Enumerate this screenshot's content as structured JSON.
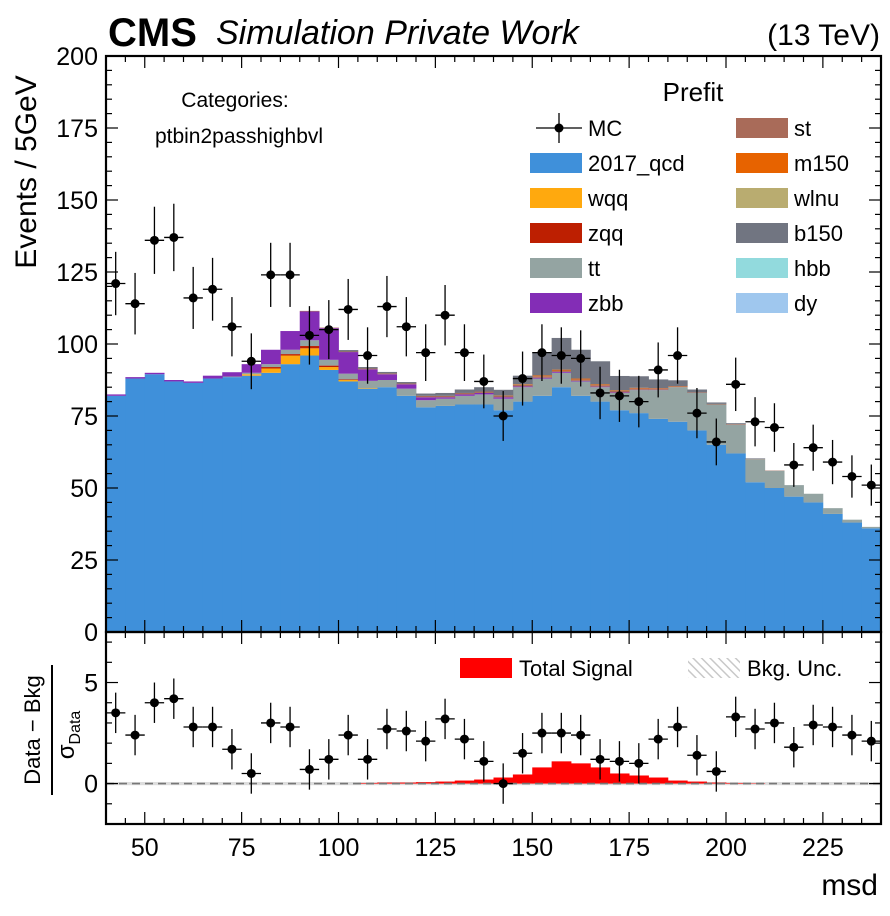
{
  "header": {
    "experiment": "CMS",
    "status": "Simulation Private Work",
    "energy": "(13 TeV)"
  },
  "chart_data": [
    {
      "panel": "main",
      "type": "bar",
      "stacked": true,
      "ylabel": "Events / 5GeV",
      "xlim": [
        40,
        240
      ],
      "ylim": [
        0,
        200
      ],
      "yticks": [
        0,
        25,
        50,
        75,
        100,
        125,
        150,
        175,
        200
      ],
      "annotation": [
        "Categories:",
        "ptbin2passhighbvl"
      ],
      "legend_title": "Prefit",
      "legend_position": "top-right",
      "bin_edges": [
        40,
        45,
        50,
        55,
        60,
        65,
        70,
        75,
        80,
        85,
        90,
        95,
        100,
        105,
        110,
        115,
        120,
        125,
        130,
        135,
        140,
        145,
        150,
        155,
        160,
        165,
        170,
        175,
        180,
        185,
        190,
        195,
        200,
        205,
        210,
        215,
        220,
        225,
        230,
        235,
        240
      ],
      "series": [
        {
          "name": "2017_qcd",
          "color": "#3f90da",
          "values": [
            82,
            88,
            89.5,
            87,
            86.5,
            88,
            88.5,
            89,
            90,
            93,
            96,
            91,
            87,
            84.5,
            85,
            82,
            78,
            78.5,
            79,
            79,
            77,
            80,
            82,
            85,
            82,
            80,
            77,
            76,
            74,
            73,
            70,
            65,
            62,
            52,
            50,
            47,
            45,
            41,
            38,
            36
          ]
        },
        {
          "name": "wqq",
          "color": "#ffa90e",
          "values": [
            0,
            0,
            0,
            0,
            0,
            0,
            0,
            0.5,
            1.5,
            3,
            2.5,
            1,
            0.5,
            0.2,
            0,
            0,
            0,
            0,
            0,
            0,
            0,
            0,
            0,
            0,
            0,
            0,
            0,
            0,
            0,
            0,
            0,
            0,
            0,
            0,
            0,
            0,
            0,
            0,
            0,
            0
          ]
        },
        {
          "name": "zqq",
          "color": "#bd1f01",
          "values": [
            0,
            0,
            0,
            0,
            0,
            0,
            0,
            0,
            0.5,
            0.5,
            0.8,
            0.5,
            0.2,
            0,
            0,
            0,
            0,
            0,
            0,
            0,
            0,
            0,
            0,
            0,
            0,
            0,
            0,
            0,
            0,
            0,
            0,
            0,
            0,
            0,
            0,
            0,
            0,
            0,
            0,
            0
          ]
        },
        {
          "name": "tt",
          "color": "#94a4a2",
          "values": [
            0,
            0,
            0,
            0,
            0,
            0,
            0.2,
            0.5,
            1,
            1.5,
            2,
            2,
            2,
            2.5,
            2.5,
            2.5,
            2.5,
            2.5,
            3,
            3.5,
            4,
            5,
            6,
            5,
            5,
            5,
            6,
            8,
            10,
            12,
            13,
            14,
            10,
            8,
            6,
            4,
            3,
            2,
            1,
            0.5
          ]
        },
        {
          "name": "zbb",
          "color": "#832db6",
          "values": [
            0.5,
            0.5,
            0.5,
            0.5,
            0.5,
            1,
            1.5,
            3,
            5,
            6.5,
            10,
            11,
            7.5,
            4,
            2,
            1.5,
            1,
            0.5,
            0.5,
            0.5,
            0.5,
            0.3,
            0.3,
            0.3,
            0.2,
            0.2,
            0.2,
            0.1,
            0.1,
            0,
            0,
            0,
            0,
            0,
            0,
            0,
            0,
            0,
            0,
            0
          ]
        },
        {
          "name": "st",
          "color": "#a96b59",
          "values": [
            0,
            0,
            0,
            0,
            0,
            0,
            0,
            0,
            0,
            0,
            0.2,
            0.2,
            0.2,
            0.3,
            0.3,
            0.3,
            0.5,
            0.5,
            0.5,
            0.5,
            0.5,
            0.5,
            0.5,
            0.5,
            0.5,
            0.5,
            0.5,
            0.5,
            0.5,
            0.3,
            0.2,
            0.2,
            0.2,
            0.1,
            0.1,
            0,
            0,
            0,
            0,
            0
          ]
        },
        {
          "name": "m150",
          "color": "#e76300",
          "values": [
            0,
            0,
            0,
            0,
            0,
            0,
            0,
            0,
            0,
            0,
            0,
            0,
            0,
            0,
            0,
            0,
            0,
            0,
            0,
            0,
            0.1,
            0.2,
            0.3,
            0.3,
            0.3,
            0.3,
            0.2,
            0.2,
            0.1,
            0.1,
            0,
            0,
            0,
            0,
            0,
            0,
            0,
            0,
            0,
            0
          ]
        },
        {
          "name": "wlnu",
          "color": "#b9ac70",
          "values": [
            0,
            0,
            0,
            0,
            0,
            0,
            0,
            0,
            0,
            0,
            0,
            0,
            0,
            0,
            0,
            0,
            0,
            0,
            0,
            0,
            0,
            0,
            0,
            0,
            0,
            0,
            0,
            0,
            0,
            0,
            0,
            0,
            0,
            0,
            0,
            0,
            0,
            0,
            0,
            0
          ]
        },
        {
          "name": "b150",
          "color": "#717581",
          "values": [
            0,
            0,
            0,
            0,
            0,
            0,
            0,
            0,
            0,
            0,
            0,
            0,
            0.5,
            0.5,
            0.5,
            0.5,
            0.8,
            1,
            1.2,
            1.5,
            2,
            3,
            8,
            11,
            10,
            8,
            5,
            4,
            3,
            2,
            1,
            0.5,
            0.3,
            0.2,
            0,
            0,
            0,
            0,
            0,
            0
          ]
        },
        {
          "name": "hbb",
          "color": "#92dadd",
          "values": [
            0,
            0,
            0,
            0,
            0,
            0,
            0,
            0,
            0,
            0,
            0,
            0,
            0,
            0,
            0,
            0,
            0,
            0,
            0,
            0,
            0,
            0,
            0,
            0,
            0,
            0,
            0,
            0,
            0,
            0,
            0,
            0,
            0,
            0,
            0,
            0,
            0,
            0,
            0,
            0
          ]
        },
        {
          "name": "dy",
          "color": "#9fc7ee",
          "values": [
            0,
            0,
            0,
            0,
            0,
            0,
            0,
            0,
            0,
            0,
            0,
            0,
            0,
            0,
            0,
            0,
            0,
            0,
            0,
            0,
            0,
            0,
            0,
            0,
            0,
            0,
            0,
            0,
            0,
            0,
            0,
            0,
            0,
            0,
            0,
            0,
            0,
            0,
            0,
            0
          ]
        }
      ],
      "points": {
        "name": "MC",
        "color": "#000000",
        "x": [
          42.5,
          47.5,
          52.5,
          57.5,
          62.5,
          67.5,
          72.5,
          77.5,
          82.5,
          87.5,
          92.5,
          97.5,
          102.5,
          107.5,
          112.5,
          117.5,
          122.5,
          127.5,
          132.5,
          137.5,
          142.5,
          147.5,
          152.5,
          157.5,
          162.5,
          167.5,
          172.5,
          177.5,
          182.5,
          187.5,
          192.5,
          197.5,
          202.5,
          207.5,
          212.5,
          217.5,
          222.5,
          227.5,
          232.5,
          237.5
        ],
        "y": [
          121,
          114,
          136,
          137,
          116,
          119,
          106,
          94,
          124,
          124,
          103,
          105,
          112,
          96,
          113,
          106,
          97,
          110,
          97,
          87,
          75,
          88,
          97,
          96,
          95,
          83,
          82,
          80,
          91,
          96,
          76,
          66,
          86,
          73,
          71,
          58,
          64,
          59,
          54,
          51
        ]
      }
    },
    {
      "panel": "ratio",
      "type": "bar",
      "ylabel_numerator": "Data − Bkg",
      "ylabel_denominator": "σ",
      "ylabel_denominator_sub": "Data",
      "xlabel": "msd",
      "xlim": [
        40,
        240
      ],
      "ylim": [
        -2,
        7.5
      ],
      "xticks": [
        50,
        75,
        100,
        125,
        150,
        175,
        200,
        225
      ],
      "yticks": [
        0,
        5
      ],
      "legend_position": "top-right",
      "legend": [
        {
          "name": "Total Signal",
          "color": "#ff0000"
        },
        {
          "name": "Bkg. Unc.",
          "color": "#cccccc"
        }
      ],
      "reference_line": 0,
      "signal_values": [
        0,
        0,
        0,
        0,
        0,
        0,
        0,
        0,
        0,
        0,
        0,
        0,
        0,
        0.03,
        0.05,
        0.05,
        0.07,
        0.1,
        0.15,
        0.2,
        0.3,
        0.45,
        0.8,
        1.1,
        1.0,
        0.8,
        0.5,
        0.4,
        0.3,
        0.15,
        0.1,
        0.05,
        0.03,
        0.02,
        0,
        0,
        0,
        0,
        0,
        0
      ],
      "points": {
        "x": [
          42.5,
          47.5,
          52.5,
          57.5,
          62.5,
          67.5,
          72.5,
          77.5,
          82.5,
          87.5,
          92.5,
          97.5,
          102.5,
          107.5,
          112.5,
          117.5,
          122.5,
          127.5,
          132.5,
          137.5,
          142.5,
          147.5,
          152.5,
          157.5,
          162.5,
          167.5,
          172.5,
          177.5,
          182.5,
          187.5,
          192.5,
          197.5,
          202.5,
          207.5,
          212.5,
          217.5,
          222.5,
          227.5,
          232.5,
          237.5
        ],
        "y": [
          3.5,
          2.4,
          4.0,
          4.2,
          2.8,
          2.8,
          1.7,
          0.5,
          3.0,
          2.8,
          0.7,
          1.2,
          2.4,
          1.2,
          2.7,
          2.6,
          2.1,
          3.2,
          2.2,
          1.1,
          0.0,
          1.5,
          2.5,
          2.5,
          2.4,
          1.2,
          1.1,
          1.0,
          2.2,
          2.8,
          1.4,
          0.6,
          3.3,
          2.7,
          3.0,
          1.8,
          2.9,
          2.8,
          2.4,
          2.1
        ]
      }
    }
  ]
}
